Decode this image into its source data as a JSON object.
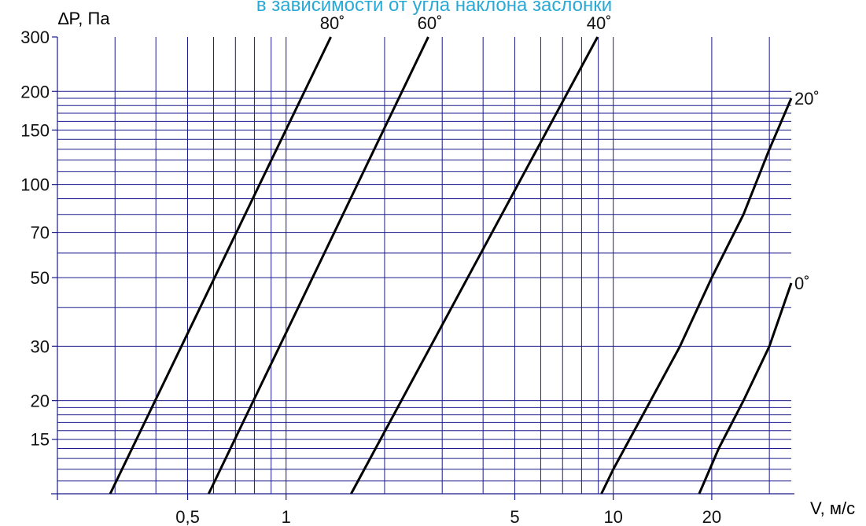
{
  "chart_data": {
    "type": "line",
    "title": "в зависимости от угла наклона заслонки",
    "title_color": "#29a9d6",
    "ylabel": "∆P, Па",
    "xlabel": "V, м/с",
    "x_scale": "log",
    "y_scale": "log",
    "xlim": [
      0.2,
      35
    ],
    "ylim": [
      10,
      300
    ],
    "x_tick_labels": [
      {
        "value": 0.5,
        "label": "0,5"
      },
      {
        "value": 1,
        "label": "1"
      },
      {
        "value": 5,
        "label": "5"
      },
      {
        "value": 10,
        "label": "10"
      },
      {
        "value": 20,
        "label": "20"
      }
    ],
    "y_tick_labels": [
      {
        "value": 15,
        "label": "15"
      },
      {
        "value": 20,
        "label": "20"
      },
      {
        "value": 30,
        "label": "30"
      },
      {
        "value": 50,
        "label": "50"
      },
      {
        "value": 70,
        "label": "70"
      },
      {
        "value": 100,
        "label": "100"
      },
      {
        "value": 150,
        "label": "150"
      },
      {
        "value": 200,
        "label": "200"
      },
      {
        "value": 300,
        "label": "300"
      }
    ],
    "x_gridlines": [
      0.2,
      0.3,
      0.4,
      0.5,
      0.6,
      0.7,
      0.8,
      0.9,
      1,
      2,
      3,
      4,
      5,
      6,
      7,
      8,
      9,
      10,
      20,
      30
    ],
    "y_gridlines": [
      11,
      12,
      13,
      14,
      15,
      16,
      17,
      18,
      19,
      20,
      30,
      40,
      50,
      60,
      70,
      80,
      90,
      100,
      110,
      120,
      130,
      140,
      150,
      160,
      170,
      180,
      190,
      200
    ],
    "grid_color": "#1a1a8c",
    "series": [
      {
        "name": "80˚",
        "x": [
          0.29,
          1.37
        ],
        "y": [
          10,
          300
        ]
      },
      {
        "name": "60˚",
        "x": [
          0.58,
          2.72
        ],
        "y": [
          10,
          300
        ]
      },
      {
        "name": "40˚",
        "x": [
          1.58,
          8.95
        ],
        "y": [
          10,
          300
        ]
      },
      {
        "name": "20˚",
        "x": [
          9.2,
          10,
          13,
          16,
          20,
          25,
          30,
          35
        ],
        "y": [
          10,
          12,
          20,
          30,
          50,
          80,
          130,
          190
        ]
      },
      {
        "name": "0˚",
        "x": [
          18.3,
          21,
          25,
          30,
          35
        ],
        "y": [
          10,
          14,
          20,
          30,
          48
        ]
      }
    ],
    "line_color": "#000000"
  }
}
